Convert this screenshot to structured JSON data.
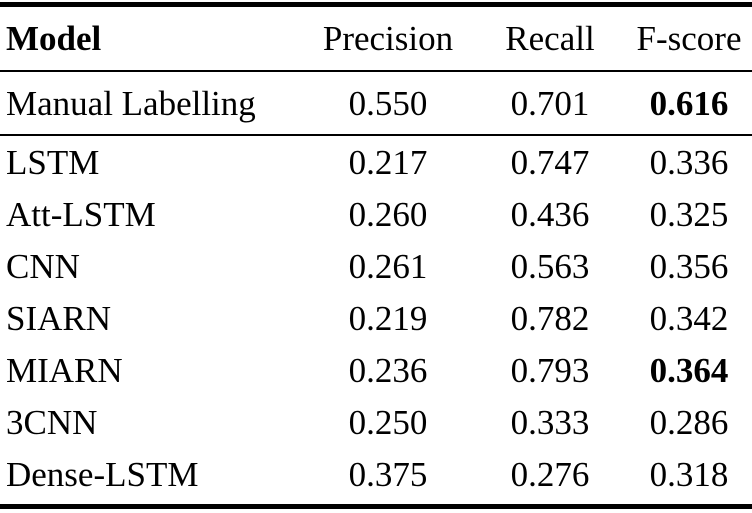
{
  "chart_data": {
    "type": "table",
    "columns": [
      "Model",
      "Precision",
      "Recall",
      "F-score"
    ],
    "rows": [
      [
        "Manual Labelling",
        "0.550",
        "0.701",
        "0.616"
      ],
      [
        "LSTM",
        "0.217",
        "0.747",
        "0.336"
      ],
      [
        "Att-LSTM",
        "0.260",
        "0.436",
        "0.325"
      ],
      [
        "CNN",
        "0.261",
        "0.563",
        "0.356"
      ],
      [
        "SIARN",
        "0.219",
        "0.782",
        "0.342"
      ],
      [
        "MIARN",
        "0.236",
        "0.793",
        "0.364"
      ],
      [
        "3CNN",
        "0.250",
        "0.333",
        "0.286"
      ],
      [
        "Dense-LSTM",
        "0.375",
        "0.276",
        "0.318"
      ]
    ],
    "bold_cells": [
      {
        "row": 0,
        "column": "F-score",
        "value": "0.616"
      },
      {
        "row": 5,
        "column": "F-score",
        "value": "0.364"
      }
    ],
    "layout": {
      "top_rule": "thick",
      "rule_after_header": "thin",
      "rule_after_first_row": "thin",
      "bottom_rule": "thick",
      "text_color": "#000000",
      "background_color": "#ffffff"
    }
  }
}
